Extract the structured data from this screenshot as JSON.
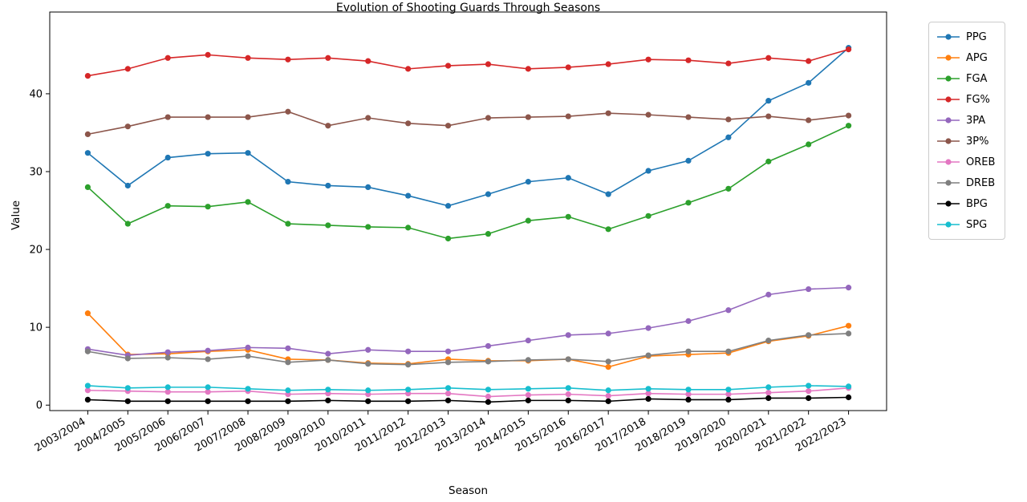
{
  "figure": {
    "background": "#ffffff",
    "axis_color": "#000000"
  },
  "chart_data": {
    "type": "line",
    "title": "Evolution of Shooting Guards Through Seasons",
    "xlabel": "Season",
    "ylabel": "Value",
    "ylim": [
      -0.7,
      50.5
    ],
    "yticks": [
      0,
      10,
      20,
      30,
      40
    ],
    "grid": false,
    "marker": "circle",
    "legend_position": "right-outside",
    "categories": [
      "2003/2004",
      "2004/2005",
      "2005/2006",
      "2006/2007",
      "2007/2008",
      "2008/2009",
      "2009/2010",
      "2010/2011",
      "2011/2012",
      "2012/2013",
      "2013/2014",
      "2014/2015",
      "2015/2016",
      "2016/2017",
      "2017/2018",
      "2018/2019",
      "2019/2020",
      "2020/2021",
      "2021/2022",
      "2022/2023"
    ],
    "series": [
      {
        "name": "PPG",
        "color": "#1f77b4",
        "values": [
          32.4,
          28.2,
          31.8,
          32.3,
          32.4,
          28.7,
          28.2,
          28.0,
          26.9,
          25.6,
          27.1,
          28.7,
          29.2,
          27.1,
          30.1,
          31.4,
          34.4,
          39.1,
          41.4,
          45.9
        ]
      },
      {
        "name": "APG",
        "color": "#ff7f0e",
        "values": [
          11.8,
          6.5,
          6.6,
          6.9,
          7.1,
          5.9,
          5.8,
          5.4,
          5.3,
          5.9,
          5.7,
          5.7,
          5.9,
          4.9,
          6.3,
          6.5,
          6.7,
          8.2,
          8.9,
          10.2
        ]
      },
      {
        "name": "FGA",
        "color": "#2ca02c",
        "values": [
          28.0,
          23.3,
          25.6,
          25.5,
          26.1,
          23.3,
          23.1,
          22.9,
          22.8,
          21.4,
          22.0,
          23.7,
          24.2,
          22.6,
          24.3,
          26.0,
          27.8,
          31.3,
          33.5,
          35.9
        ]
      },
      {
        "name": "FG%",
        "color": "#d62728",
        "values": [
          42.3,
          43.2,
          44.6,
          45.0,
          44.6,
          44.4,
          44.6,
          44.2,
          43.2,
          43.6,
          43.8,
          43.2,
          43.4,
          43.8,
          44.4,
          44.3,
          43.9,
          44.6,
          44.2,
          45.7
        ]
      },
      {
        "name": "3PA",
        "color": "#9467bd",
        "values": [
          7.2,
          6.4,
          6.8,
          7.0,
          7.4,
          7.3,
          6.6,
          7.1,
          6.9,
          6.9,
          7.6,
          8.3,
          9.0,
          9.2,
          9.9,
          10.8,
          12.2,
          14.2,
          14.9,
          15.1
        ]
      },
      {
        "name": "3P%",
        "color": "#8c564b",
        "values": [
          34.8,
          35.8,
          37.0,
          37.0,
          37.0,
          37.7,
          35.9,
          36.9,
          36.2,
          35.9,
          36.9,
          37.0,
          37.1,
          37.5,
          37.3,
          37.0,
          36.7,
          37.1,
          36.6,
          37.2
        ]
      },
      {
        "name": "OREB",
        "color": "#e377c2",
        "values": [
          1.9,
          1.8,
          1.7,
          1.7,
          1.8,
          1.4,
          1.5,
          1.4,
          1.5,
          1.5,
          1.1,
          1.3,
          1.4,
          1.2,
          1.5,
          1.4,
          1.4,
          1.6,
          1.8,
          2.2
        ]
      },
      {
        "name": "DREB",
        "color": "#7f7f7f",
        "values": [
          6.9,
          6.0,
          6.1,
          5.9,
          6.3,
          5.5,
          5.8,
          5.3,
          5.2,
          5.5,
          5.6,
          5.8,
          5.9,
          5.6,
          6.4,
          6.9,
          6.9,
          8.3,
          9.0,
          9.2
        ]
      },
      {
        "name": "BPG",
        "color": "#000000",
        "values": [
          0.7,
          0.5,
          0.5,
          0.5,
          0.5,
          0.5,
          0.6,
          0.5,
          0.5,
          0.6,
          0.4,
          0.6,
          0.6,
          0.5,
          0.8,
          0.7,
          0.7,
          0.9,
          0.9,
          1.0
        ]
      },
      {
        "name": "SPG",
        "color": "#17becf",
        "values": [
          2.5,
          2.2,
          2.3,
          2.3,
          2.1,
          1.9,
          2.0,
          1.9,
          2.0,
          2.2,
          2.0,
          2.1,
          2.2,
          1.9,
          2.1,
          2.0,
          2.0,
          2.3,
          2.5,
          2.4
        ]
      }
    ]
  }
}
